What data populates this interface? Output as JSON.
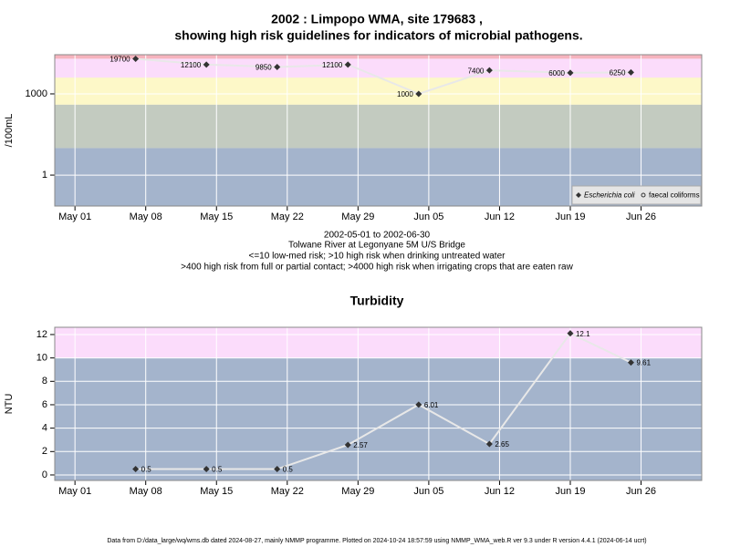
{
  "chart_data": [
    {
      "type": "line",
      "title": [
        "2002 : Limpopo WMA, site 179683 ,",
        "showing high risk guidelines for indicators of microbial pathogens."
      ],
      "subtitle": [
        "2002-05-01 to 2002-06-30",
        "Tolwane River at Legonyane 5M U/S Bridge",
        "<=10 low-med risk; >10 high risk when drinking untreated water",
        ">400 high risk from full or partial contact; >4000 high risk when irrigating crops that are eaten raw"
      ],
      "y_label": "/100mL",
      "log_scale": true,
      "x": [
        "2002-05-07",
        "2002-05-14",
        "2002-05-21",
        "2002-05-28",
        "2002-06-04",
        "2002-06-11",
        "2002-06-19",
        "2002-06-25"
      ],
      "series": [
        {
          "name": "Escherichia coli",
          "color": "#333333",
          "values": [
            19700,
            12100,
            9850,
            12100,
            1000,
            7400,
            6000,
            6250
          ]
        },
        {
          "name": "faecal coliforms",
          "color": "#333333",
          "values": [
            null,
            null,
            null,
            null,
            null,
            null,
            null,
            null
          ]
        }
      ],
      "xlim": [
        "2002-04-29",
        "2002-07-02"
      ],
      "xticks": [
        {
          "value": "2002-05-01",
          "label": "May 01"
        },
        {
          "value": "2002-05-08",
          "label": "May 08"
        },
        {
          "value": "2002-05-15",
          "label": "May 15"
        },
        {
          "value": "2002-05-22",
          "label": "May 22"
        },
        {
          "value": "2002-05-29",
          "label": "May 29"
        },
        {
          "value": "2002-06-05",
          "label": "Jun 05"
        },
        {
          "value": "2002-06-12",
          "label": "Jun 12"
        },
        {
          "value": "2002-06-19",
          "label": "Jun 19"
        },
        {
          "value": "2002-06-26",
          "label": "Jun 26"
        }
      ],
      "ylim": [
        0.072,
        28000
      ],
      "yticks": [
        1,
        1000
      ],
      "grid": true,
      "legend": "bottom-right",
      "bands": [
        {
          "to": 10,
          "color": "#a4b4cc"
        },
        {
          "from": 10,
          "to": 400,
          "color": "#c3cbc0"
        },
        {
          "from": 400,
          "to": 4000,
          "color": "#fdf8c8"
        },
        {
          "from": 4000,
          "to": 20000,
          "color": "#fbdcfb"
        },
        {
          "from": 20000,
          "color": "#f6b4be"
        }
      ]
    },
    {
      "type": "line",
      "title": "Turbidity",
      "y_label": "NTU",
      "x": [
        "2002-05-07",
        "2002-05-14",
        "2002-05-21",
        "2002-05-28",
        "2002-06-04",
        "2002-06-11",
        "2002-06-19",
        "2002-06-25"
      ],
      "series": [
        {
          "name": "Turbidity",
          "color": "#333333",
          "values": [
            0.5,
            0.5,
            0.5,
            2.57,
            6.01,
            2.65,
            12.1,
            9.61
          ]
        }
      ],
      "xlim": [
        "2002-04-29",
        "2002-07-02"
      ],
      "xticks": [
        {
          "value": "2002-05-01",
          "label": "May 01"
        },
        {
          "value": "2002-05-08",
          "label": "May 08"
        },
        {
          "value": "2002-05-15",
          "label": "May 15"
        },
        {
          "value": "2002-05-22",
          "label": "May 22"
        },
        {
          "value": "2002-05-29",
          "label": "May 29"
        },
        {
          "value": "2002-06-05",
          "label": "Jun 05"
        },
        {
          "value": "2002-06-12",
          "label": "Jun 12"
        },
        {
          "value": "2002-06-19",
          "label": "Jun 19"
        },
        {
          "value": "2002-06-26",
          "label": "Jun 26"
        }
      ],
      "ylim": [
        -0.47,
        12.62
      ],
      "yticks": [
        0,
        2,
        4,
        6,
        8,
        10,
        12
      ],
      "grid": true,
      "bands": [
        {
          "to": 10,
          "color": "#a4b4cc"
        },
        {
          "from": 10,
          "color": "#fbdcfb"
        }
      ]
    }
  ],
  "footer": "Data from D:/data_large/wq/wms.db dated 2024-08-27, mainly NMMP programme. Plotted on 2024-10-24 18:57:59 using NMMP_WMA_web.R ver 9.3 under R version 4.4.1 (2024-06-14 ucrt)"
}
